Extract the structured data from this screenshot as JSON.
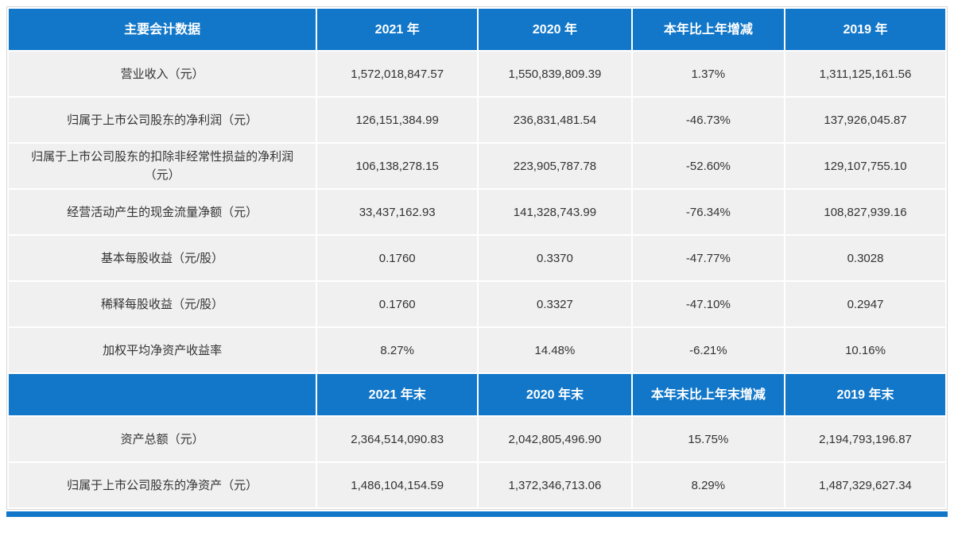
{
  "accent_color": "#1277c9",
  "row_background_color": "#f0f0f0",
  "table": {
    "section1": {
      "headers": [
        "主要会计数据",
        "2021 年",
        "2020 年",
        "本年比上年增减",
        "2019 年"
      ],
      "rows": [
        [
          "营业收入（元）",
          "1,572,018,847.57",
          "1,550,839,809.39",
          "1.37%",
          "1,311,125,161.56"
        ],
        [
          "归属于上市公司股东的净利润（元）",
          "126,151,384.99",
          "236,831,481.54",
          "-46.73%",
          "137,926,045.87"
        ],
        [
          "归属于上市公司股东的扣除非经常性损益的净利润（元）",
          "106,138,278.15",
          "223,905,787.78",
          "-52.60%",
          "129,107,755.10"
        ],
        [
          "经营活动产生的现金流量净额（元）",
          "33,437,162.93",
          "141,328,743.99",
          "-76.34%",
          "108,827,939.16"
        ],
        [
          "基本每股收益（元/股）",
          "0.1760",
          "0.3370",
          "-47.77%",
          "0.3028"
        ],
        [
          "稀释每股收益（元/股）",
          "0.1760",
          "0.3327",
          "-47.10%",
          "0.2947"
        ],
        [
          "加权平均净资产收益率",
          "8.27%",
          "14.48%",
          "-6.21%",
          "10.16%"
        ]
      ]
    },
    "section2": {
      "headers": [
        "",
        "2021 年末",
        "2020 年末",
        "本年末比上年末增减",
        "2019 年末"
      ],
      "rows": [
        [
          "资产总额（元）",
          "2,364,514,090.83",
          "2,042,805,496.90",
          "15.75%",
          "2,194,793,196.87"
        ],
        [
          "归属于上市公司股东的净资产（元）",
          "1,486,104,154.59",
          "1,372,346,713.06",
          "8.29%",
          "1,487,329,627.34"
        ]
      ]
    }
  }
}
